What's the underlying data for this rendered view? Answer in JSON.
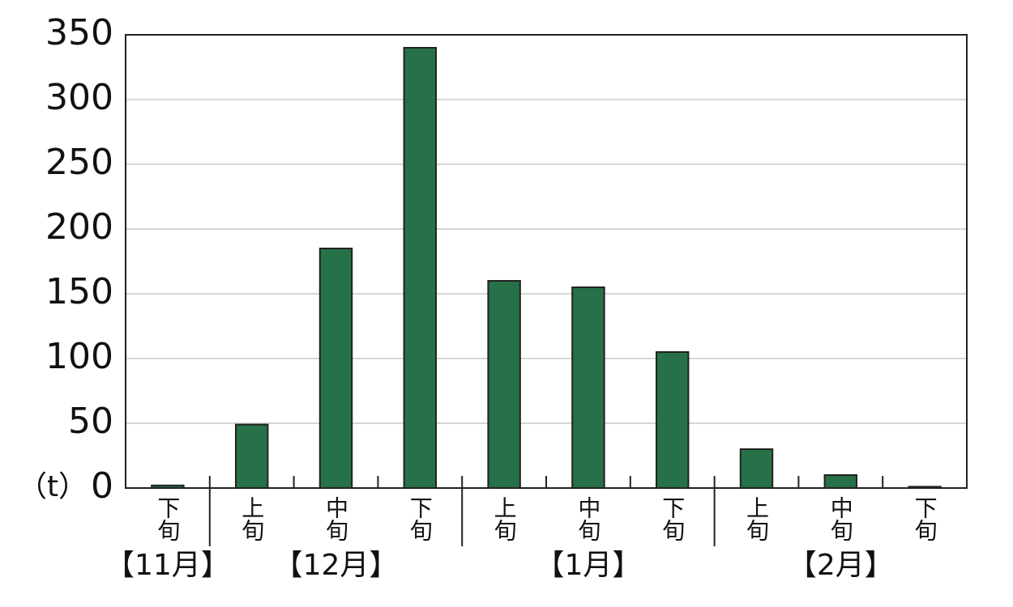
{
  "chart_data": {
    "type": "bar",
    "unit_label": "（t）",
    "color": "#277148",
    "groups": [
      {
        "label": "【11月】",
        "categories": [
          "下旬"
        ],
        "values": [
          2
        ]
      },
      {
        "label": "【12月】",
        "categories": [
          "上旬",
          "中旬",
          "下旬"
        ],
        "values": [
          49,
          185,
          340
        ]
      },
      {
        "label": "【1月】",
        "categories": [
          "上旬",
          "中旬",
          "下旬"
        ],
        "values": [
          160,
          155,
          105
        ]
      },
      {
        "label": "【2月】",
        "categories": [
          "上旬",
          "中旬",
          "下旬"
        ],
        "values": [
          30,
          10,
          1
        ]
      }
    ],
    "ylim": [
      0,
      350
    ],
    "yticks": [
      0,
      50,
      100,
      150,
      200,
      250,
      300,
      350
    ],
    "grid": true
  }
}
